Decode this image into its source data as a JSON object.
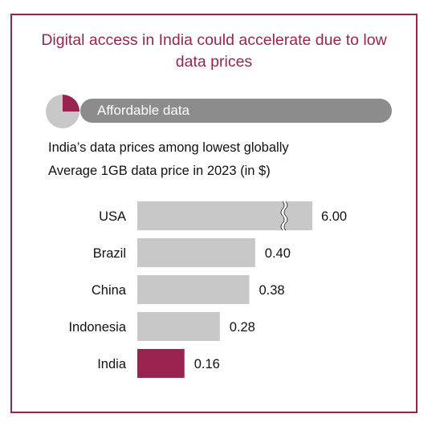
{
  "header": {
    "title_line1": "Digital access in India could accelerate due to low",
    "title_line2": "data prices"
  },
  "section": {
    "label": "Affordable data",
    "icon": "pie-icon"
  },
  "subtitle_line1": "India’s data prices among lowest globally",
  "colors": {
    "accent": "#9b2350",
    "bar": "#c8c8c8",
    "pill": "#8c8c8c"
  },
  "chart_data": {
    "type": "bar",
    "orientation": "horizontal",
    "title": "Average 1GB data price in 2023 (in $)",
    "categories": [
      "USA",
      "Brazil",
      "China",
      "Indonesia",
      "India"
    ],
    "values": [
      6.0,
      0.4,
      0.38,
      0.28,
      0.16
    ],
    "value_labels": [
      "6.00",
      "0.40",
      "0.38",
      "0.28",
      "0.16"
    ],
    "highlight": "India",
    "axis_break_on": "USA",
    "grid": false,
    "legend": "none"
  }
}
